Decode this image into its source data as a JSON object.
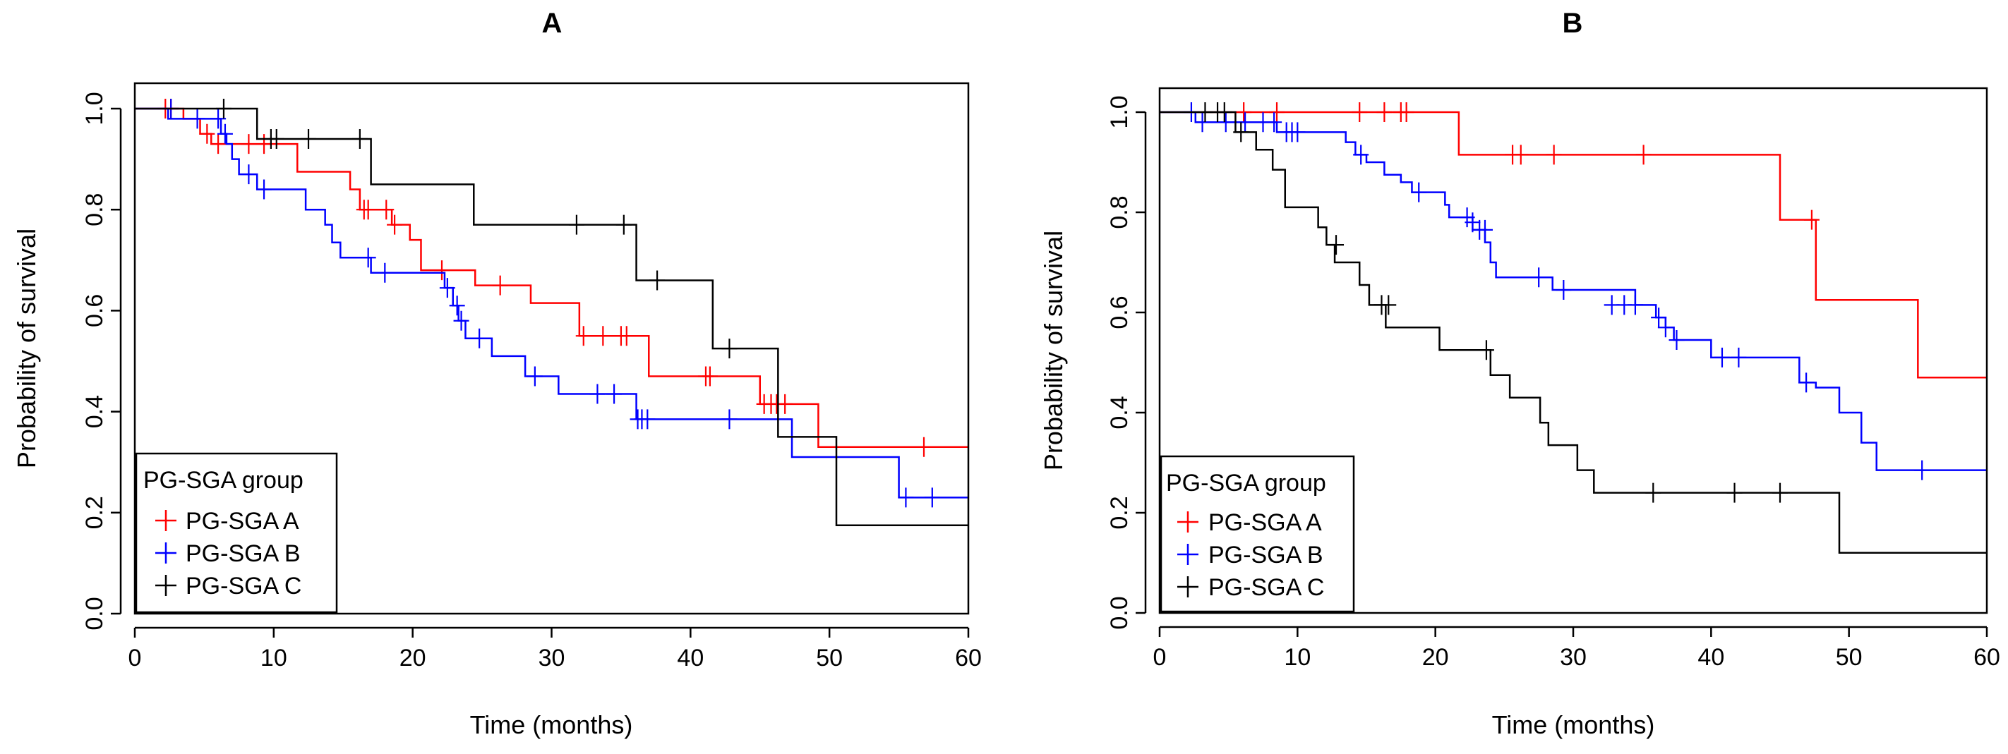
{
  "chart_data": [
    {
      "type": "line",
      "title": "A",
      "xlabel": "Time (months)",
      "ylabel": "Probability of survival",
      "xlim": [
        0,
        60
      ],
      "ylim": [
        0,
        1
      ],
      "xticks": [
        0,
        10,
        20,
        30,
        40,
        50,
        60
      ],
      "yticks": [
        "0.0",
        "0.2",
        "0.4",
        "0.6",
        "0.8",
        "1.0"
      ],
      "legend": {
        "title": "PG-SGA group",
        "position": "bottom-left",
        "entries": [
          "PG-SGA A",
          "PG-SGA B",
          "PG-SGA C"
        ]
      },
      "series": [
        {
          "name": "PG-SGA A",
          "color": "#ff0000",
          "steps": [
            [
              0,
              1.0
            ],
            [
              3.5,
              0.98
            ],
            [
              4.7,
              0.95
            ],
            [
              5.5,
              0.93
            ],
            [
              11.7,
              0.875
            ],
            [
              15.5,
              0.84
            ],
            [
              16.2,
              0.8
            ],
            [
              18.5,
              0.77
            ],
            [
              19.8,
              0.74
            ],
            [
              20.6,
              0.68
            ],
            [
              24.5,
              0.65
            ],
            [
              28.5,
              0.615
            ],
            [
              32,
              0.55
            ],
            [
              37,
              0.47
            ],
            [
              45,
              0.415
            ],
            [
              49.2,
              0.33
            ],
            [
              60,
              0.33
            ]
          ],
          "censor": [
            [
              2.2,
              1.0
            ],
            [
              2.6,
              1.0
            ],
            [
              5.2,
              0.95
            ],
            [
              6,
              0.93
            ],
            [
              8.2,
              0.93
            ],
            [
              9.3,
              0.93
            ],
            [
              16.5,
              0.8
            ],
            [
              16.8,
              0.8
            ],
            [
              18.1,
              0.8
            ],
            [
              18.7,
              0.77
            ],
            [
              22.1,
              0.68
            ],
            [
              26.3,
              0.65
            ],
            [
              32.3,
              0.55
            ],
            [
              33.7,
              0.55
            ],
            [
              35,
              0.55
            ],
            [
              35.4,
              0.55
            ],
            [
              41.1,
              0.47
            ],
            [
              41.4,
              0.47
            ],
            [
              45.3,
              0.415
            ],
            [
              45.8,
              0.415
            ],
            [
              46.2,
              0.415
            ],
            [
              46.8,
              0.415
            ],
            [
              56.8,
              0.33
            ]
          ]
        },
        {
          "name": "PG-SGA B",
          "color": "#0000ff",
          "steps": [
            [
              0,
              1.0
            ],
            [
              2.4,
              0.98
            ],
            [
              6.2,
              0.95
            ],
            [
              6.6,
              0.93
            ],
            [
              7,
              0.9
            ],
            [
              7.5,
              0.87
            ],
            [
              8.8,
              0.84
            ],
            [
              12.3,
              0.8
            ],
            [
              13.7,
              0.77
            ],
            [
              14.2,
              0.735
            ],
            [
              14.8,
              0.705
            ],
            [
              17,
              0.675
            ],
            [
              22.3,
              0.645
            ],
            [
              22.9,
              0.61
            ],
            [
              23.3,
              0.58
            ],
            [
              23.8,
              0.545
            ],
            [
              25.7,
              0.51
            ],
            [
              28.1,
              0.47
            ],
            [
              30.5,
              0.435
            ],
            [
              36.1,
              0.385
            ],
            [
              44,
              0.385
            ],
            [
              47.3,
              0.31
            ],
            [
              55,
              0.23
            ],
            [
              60,
              0.23
            ]
          ],
          "censor": [
            [
              2.6,
              1.0
            ],
            [
              4.5,
              0.98
            ],
            [
              6,
              0.98
            ],
            [
              6.5,
              0.95
            ],
            [
              8.2,
              0.87
            ],
            [
              9.3,
              0.84
            ],
            [
              16.8,
              0.705
            ],
            [
              18,
              0.675
            ],
            [
              22.5,
              0.645
            ],
            [
              23.2,
              0.61
            ],
            [
              23.5,
              0.58
            ],
            [
              24.8,
              0.545
            ],
            [
              28.8,
              0.47
            ],
            [
              33.3,
              0.435
            ],
            [
              34.5,
              0.435
            ],
            [
              36.2,
              0.385
            ],
            [
              36.5,
              0.385
            ],
            [
              36.9,
              0.385
            ],
            [
              42.8,
              0.385
            ],
            [
              55.5,
              0.23
            ],
            [
              57.4,
              0.23
            ]
          ]
        },
        {
          "name": "PG-SGA C",
          "color": "#000000",
          "steps": [
            [
              0,
              1.0
            ],
            [
              8.8,
              0.94
            ],
            [
              17,
              0.85
            ],
            [
              24.4,
              0.77
            ],
            [
              36.1,
              0.66
            ],
            [
              41.6,
              0.525
            ],
            [
              46.3,
              0.35
            ],
            [
              50.5,
              0.175
            ],
            [
              60,
              0.175
            ]
          ],
          "censor": [
            [
              6.4,
              1.0
            ],
            [
              9.8,
              0.94
            ],
            [
              10.2,
              0.94
            ],
            [
              12.5,
              0.94
            ],
            [
              16.2,
              0.94
            ],
            [
              31.8,
              0.77
            ],
            [
              35.2,
              0.77
            ],
            [
              37.6,
              0.66
            ],
            [
              42.8,
              0.525
            ]
          ]
        }
      ]
    },
    {
      "type": "line",
      "title": "B",
      "xlabel": "Time (months)",
      "ylabel": "Probability of survival",
      "xlim": [
        0,
        60
      ],
      "ylim": [
        0,
        1
      ],
      "xticks": [
        0,
        10,
        20,
        30,
        40,
        50,
        60
      ],
      "yticks": [
        "0.0",
        "0.2",
        "0.4",
        "0.6",
        "0.8",
        "1.0"
      ],
      "legend": {
        "title": "PG-SGA group",
        "position": "bottom-left",
        "entries": [
          "PG-SGA A",
          "PG-SGA B",
          "PG-SGA C"
        ]
      },
      "series": [
        {
          "name": "PG-SGA A",
          "color": "#ff0000",
          "steps": [
            [
              0,
              1.0
            ],
            [
              21.7,
              0.915
            ],
            [
              45,
              0.785
            ],
            [
              47.6,
              0.625
            ],
            [
              55,
              0.47
            ],
            [
              60,
              0.47
            ]
          ],
          "censor": [
            [
              6.1,
              1.0
            ],
            [
              8.5,
              1.0
            ],
            [
              14.5,
              1.0
            ],
            [
              16.3,
              1.0
            ],
            [
              17.5,
              1.0
            ],
            [
              17.9,
              1.0
            ],
            [
              25.6,
              0.915
            ],
            [
              26.2,
              0.915
            ],
            [
              28.6,
              0.915
            ],
            [
              35.1,
              0.915
            ],
            [
              47.3,
              0.785
            ]
          ]
        },
        {
          "name": "PG-SGA B",
          "color": "#0000ff",
          "steps": [
            [
              0,
              1.0
            ],
            [
              2.6,
              0.98
            ],
            [
              8.5,
              0.96
            ],
            [
              13.5,
              0.94
            ],
            [
              14.2,
              0.915
            ],
            [
              15,
              0.9
            ],
            [
              16.3,
              0.875
            ],
            [
              17.5,
              0.86
            ],
            [
              18.3,
              0.84
            ],
            [
              20.7,
              0.815
            ],
            [
              21,
              0.79
            ],
            [
              22.7,
              0.765
            ],
            [
              23.6,
              0.74
            ],
            [
              24,
              0.7
            ],
            [
              24.4,
              0.67
            ],
            [
              28.5,
              0.645
            ],
            [
              34.5,
              0.615
            ],
            [
              36,
              0.59
            ],
            [
              36.7,
              0.57
            ],
            [
              37.3,
              0.545
            ],
            [
              40,
              0.51
            ],
            [
              46.4,
              0.46
            ],
            [
              47.6,
              0.45
            ],
            [
              49.3,
              0.4
            ],
            [
              50.9,
              0.34
            ],
            [
              52,
              0.285
            ],
            [
              60,
              0.285
            ]
          ],
          "censor": [
            [
              2.3,
              1.0
            ],
            [
              3.1,
              0.98
            ],
            [
              4.8,
              0.98
            ],
            [
              6.2,
              0.98
            ],
            [
              7.5,
              0.98
            ],
            [
              8.3,
              0.98
            ],
            [
              9.2,
              0.96
            ],
            [
              9.6,
              0.96
            ],
            [
              10,
              0.96
            ],
            [
              14.6,
              0.915
            ],
            [
              18.8,
              0.84
            ],
            [
              22.3,
              0.79
            ],
            [
              22.7,
              0.78
            ],
            [
              23.2,
              0.765
            ],
            [
              23.6,
              0.765
            ],
            [
              27.5,
              0.67
            ],
            [
              29.3,
              0.645
            ],
            [
              32.8,
              0.615
            ],
            [
              33.7,
              0.615
            ],
            [
              34.5,
              0.615
            ],
            [
              36.2,
              0.59
            ],
            [
              36.7,
              0.57
            ],
            [
              37.5,
              0.545
            ],
            [
              40.8,
              0.51
            ],
            [
              42,
              0.51
            ],
            [
              46.9,
              0.46
            ],
            [
              55.3,
              0.285
            ]
          ]
        },
        {
          "name": "PG-SGA C",
          "color": "#000000",
          "steps": [
            [
              0,
              1.0
            ],
            [
              5.5,
              0.96
            ],
            [
              7,
              0.925
            ],
            [
              8.2,
              0.885
            ],
            [
              9.1,
              0.81
            ],
            [
              11.5,
              0.77
            ],
            [
              12.1,
              0.735
            ],
            [
              12.7,
              0.7
            ],
            [
              14.5,
              0.655
            ],
            [
              15.2,
              0.615
            ],
            [
              16.4,
              0.57
            ],
            [
              20.3,
              0.525
            ],
            [
              24,
              0.475
            ],
            [
              25.4,
              0.43
            ],
            [
              27.6,
              0.38
            ],
            [
              28.2,
              0.335
            ],
            [
              30.3,
              0.285
            ],
            [
              31.5,
              0.24
            ],
            [
              49.3,
              0.12
            ],
            [
              60,
              0.12
            ]
          ],
          "censor": [
            [
              3.3,
              1.0
            ],
            [
              4.2,
              1.0
            ],
            [
              4.7,
              1.0
            ],
            [
              5.9,
              0.96
            ],
            [
              12.8,
              0.735
            ],
            [
              16.1,
              0.615
            ],
            [
              16.6,
              0.615
            ],
            [
              23.7,
              0.525
            ],
            [
              35.8,
              0.24
            ],
            [
              41.7,
              0.24
            ],
            [
              45,
              0.24
            ]
          ]
        }
      ]
    }
  ]
}
